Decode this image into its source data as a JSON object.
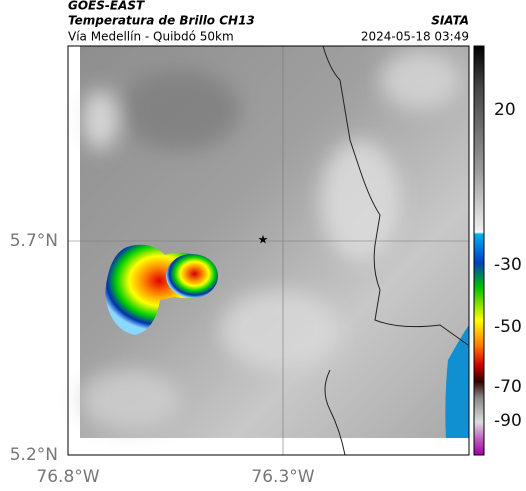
{
  "header": {
    "source": "GOES-EAST",
    "product": "Temperatura de Brillo CH13",
    "org": "SIATA",
    "route": "Vía Medellín - Quibdó 50km",
    "datetime": "2024-05-18 03:49"
  },
  "axes": {
    "lat_labels": [
      "5.7°N",
      "5.2°N"
    ],
    "lon_labels": [
      "76.8°W",
      "76.3°W"
    ]
  },
  "colorbar": {
    "labels": [
      "20",
      "-30",
      "-50",
      "-70",
      "-90"
    ]
  }
}
